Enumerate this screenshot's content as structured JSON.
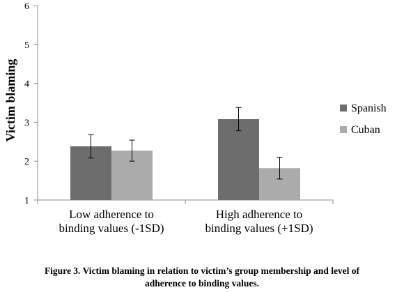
{
  "chart_data": {
    "type": "bar",
    "ylabel": "Victim blaming",
    "xlabel": "",
    "ylim": [
      1,
      6
    ],
    "yticks": [
      1,
      2,
      3,
      4,
      5,
      6
    ],
    "grid": false,
    "legend_position": "right",
    "categories": [
      [
        "Low adherence to",
        "binding values (-1SD)"
      ],
      [
        "High adherence to",
        "binding values (+1SD)"
      ]
    ],
    "series": [
      {
        "name": "Spanish",
        "color": "#6d6d6d",
        "values": [
          2.38,
          3.08
        ],
        "errors": [
          0.3,
          0.3
        ]
      },
      {
        "name": "Cuban",
        "color": "#ababab",
        "values": [
          2.27,
          1.82
        ],
        "errors": [
          0.27,
          0.28
        ]
      }
    ]
  },
  "caption": {
    "line1": "Figure 3. Victim blaming in relation to victim’s group membership and level of",
    "line2": "adherence to binding values."
  }
}
